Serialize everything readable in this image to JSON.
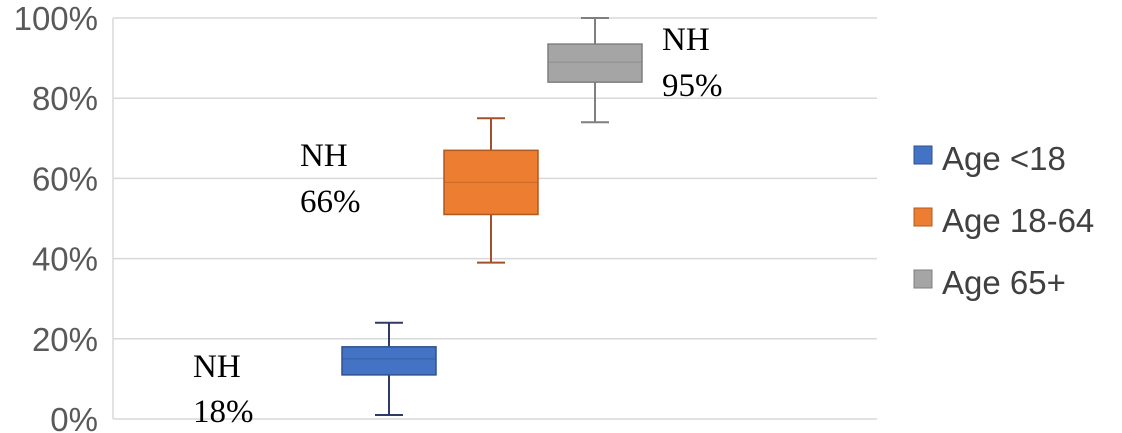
{
  "chart_data": {
    "type": "box",
    "ylim": [
      0,
      100
    ],
    "y_ticks": [
      "0%",
      "20%",
      "40%",
      "60%",
      "80%",
      "100%"
    ],
    "grid": true,
    "legend_position": "right",
    "series": [
      {
        "name": "Age <18",
        "color": "#4472C4",
        "stroke": "#2F528F",
        "whisker_color": "#2F3B66",
        "min": 1,
        "q1": 11,
        "median": 15,
        "q3": 18,
        "max": 24,
        "annotation": [
          "NH",
          "18%"
        ]
      },
      {
        "name": "Age 18-64",
        "color": "#ED7D31",
        "stroke": "#AE5A21",
        "whisker_color": "#A0522D",
        "min": 39,
        "q1": 51,
        "median": 59,
        "q3": 67,
        "max": 75,
        "annotation": [
          "NH",
          "66%"
        ]
      },
      {
        "name": "Age 65+",
        "color": "#A5A5A5",
        "stroke": "#7F7F7F",
        "whisker_color": "#7F7F7F",
        "min": 74,
        "q1": 84,
        "median": 89,
        "q3": 93.5,
        "max": 100,
        "annotation": [
          "NH",
          "95%"
        ]
      }
    ]
  }
}
